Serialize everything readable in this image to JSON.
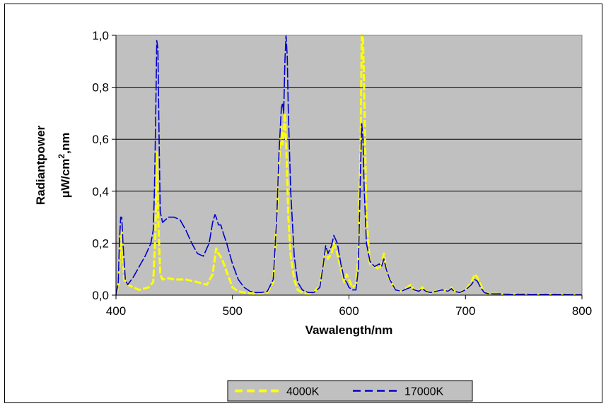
{
  "chart_data": {
    "type": "line",
    "title": "",
    "xlabel": "Vawalength/nm",
    "ylabel_line1": "Radiantpower",
    "ylabel_line2_prefix": "μW/cm",
    "ylabel_line2_sup": "2",
    "ylabel_line2_suffix": ",nm",
    "xlim": [
      400,
      800
    ],
    "ylim": [
      0,
      1.0
    ],
    "xticks": [
      400,
      500,
      600,
      700,
      800
    ],
    "xtick_labels": [
      "400",
      "500",
      "600",
      "700",
      "800"
    ],
    "yticks": [
      0,
      0.2,
      0.4,
      0.6,
      0.8,
      1.0
    ],
    "ytick_labels": [
      "0,0",
      "0,2",
      "0,4",
      "0,6",
      "0,8",
      "1,0"
    ],
    "grid": "horizontal",
    "plot_background": "#c0c0c0",
    "legend_position": "bottom",
    "series": [
      {
        "name": "4000K",
        "color": "#ffff00",
        "dash": "dashed",
        "x": [
          400,
          402,
          404,
          405,
          407,
          410,
          420,
          428,
          432,
          434,
          435,
          436,
          438,
          440,
          445,
          450,
          460,
          470,
          478,
          483,
          486,
          488,
          491,
          495,
          500,
          505,
          510,
          520,
          530,
          535,
          538,
          540,
          542,
          543,
          544,
          545,
          546,
          547,
          548,
          550,
          553,
          556,
          560,
          565,
          570,
          575,
          578,
          580,
          582,
          585,
          587,
          590,
          593,
          596,
          598,
          600,
          603,
          606,
          608,
          610,
          611,
          612,
          613,
          615,
          618,
          622,
          626,
          628,
          630,
          632,
          635,
          640,
          645,
          650,
          653,
          656,
          660,
          663,
          666,
          670,
          675,
          680,
          685,
          688,
          690,
          695,
          700,
          705,
          708,
          710,
          713,
          716,
          720,
          730,
          740,
          750,
          760,
          780,
          800
        ],
        "y": [
          0.0,
          0.03,
          0.2,
          0.25,
          0.06,
          0.04,
          0.02,
          0.03,
          0.05,
          0.25,
          0.55,
          0.33,
          0.08,
          0.06,
          0.065,
          0.06,
          0.06,
          0.05,
          0.04,
          0.08,
          0.18,
          0.16,
          0.14,
          0.09,
          0.03,
          0.015,
          0.01,
          0.005,
          0.01,
          0.05,
          0.3,
          0.5,
          0.65,
          0.58,
          0.62,
          0.7,
          0.6,
          0.45,
          0.3,
          0.15,
          0.06,
          0.02,
          0.01,
          0.005,
          0.01,
          0.04,
          0.12,
          0.18,
          0.14,
          0.16,
          0.2,
          0.16,
          0.1,
          0.05,
          0.08,
          0.06,
          0.03,
          0.04,
          0.15,
          0.6,
          1.0,
          1.0,
          0.8,
          0.3,
          0.12,
          0.11,
          0.1,
          0.12,
          0.16,
          0.1,
          0.06,
          0.02,
          0.015,
          0.03,
          0.04,
          0.02,
          0.015,
          0.03,
          0.015,
          0.01,
          0.015,
          0.02,
          0.015,
          0.03,
          0.015,
          0.01,
          0.02,
          0.05,
          0.08,
          0.07,
          0.04,
          0.01,
          0.005,
          0.005,
          0.003,
          0.005,
          0.003,
          0.003,
          0.002
        ]
      },
      {
        "name": "17000K",
        "color": "#0000cc",
        "dash": "dashed",
        "x": [
          400,
          402,
          403,
          404,
          405,
          406,
          408,
          410,
          415,
          420,
          425,
          430,
          432,
          433,
          434,
          435,
          436,
          437,
          438,
          440,
          445,
          450,
          455,
          460,
          465,
          470,
          475,
          480,
          483,
          485,
          486,
          488,
          490,
          492,
          495,
          500,
          505,
          510,
          515,
          520,
          525,
          530,
          535,
          538,
          540,
          542,
          543,
          544,
          545,
          546,
          547,
          548,
          550,
          553,
          556,
          560,
          565,
          570,
          575,
          578,
          580,
          582,
          585,
          587,
          590,
          593,
          596,
          598,
          600,
          603,
          606,
          608,
          610,
          611,
          612,
          613,
          615,
          618,
          622,
          626,
          628,
          630,
          632,
          635,
          640,
          645,
          650,
          653,
          656,
          660,
          663,
          666,
          670,
          675,
          680,
          685,
          688,
          690,
          695,
          700,
          705,
          708,
          710,
          713,
          716,
          720,
          730,
          740,
          750,
          760,
          780,
          800
        ],
        "y": [
          0.0,
          0.05,
          0.2,
          0.3,
          0.3,
          0.2,
          0.06,
          0.04,
          0.07,
          0.11,
          0.15,
          0.2,
          0.25,
          0.4,
          0.65,
          0.98,
          0.95,
          0.6,
          0.32,
          0.28,
          0.3,
          0.3,
          0.29,
          0.25,
          0.2,
          0.16,
          0.15,
          0.2,
          0.28,
          0.31,
          0.3,
          0.27,
          0.27,
          0.24,
          0.2,
          0.12,
          0.06,
          0.03,
          0.015,
          0.01,
          0.01,
          0.015,
          0.06,
          0.3,
          0.55,
          0.72,
          0.74,
          0.7,
          0.9,
          1.0,
          0.92,
          0.7,
          0.4,
          0.15,
          0.05,
          0.02,
          0.01,
          0.01,
          0.03,
          0.12,
          0.19,
          0.16,
          0.19,
          0.23,
          0.2,
          0.12,
          0.06,
          0.05,
          0.03,
          0.02,
          0.02,
          0.1,
          0.5,
          0.66,
          0.6,
          0.42,
          0.2,
          0.13,
          0.11,
          0.12,
          0.11,
          0.14,
          0.1,
          0.06,
          0.02,
          0.015,
          0.025,
          0.03,
          0.02,
          0.015,
          0.025,
          0.015,
          0.01,
          0.015,
          0.02,
          0.015,
          0.025,
          0.015,
          0.01,
          0.02,
          0.04,
          0.06,
          0.055,
          0.03,
          0.01,
          0.005,
          0.005,
          0.003,
          0.004,
          0.003,
          0.003,
          0.002
        ]
      }
    ]
  }
}
